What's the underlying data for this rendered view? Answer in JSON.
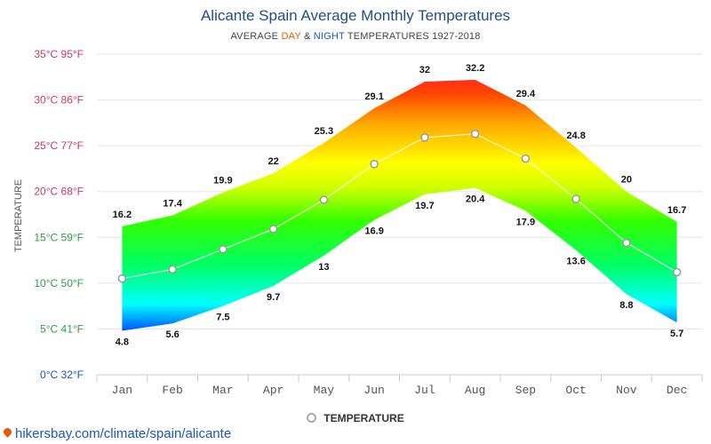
{
  "header": {
    "title": "Alicante Spain Average Monthly Temperatures",
    "subtitle_prefix": "AVERAGE ",
    "subtitle_day": "DAY",
    "subtitle_amp": " & ",
    "subtitle_night": "NIGHT",
    "subtitle_suffix": " TEMPERATURES 1927-2018"
  },
  "legend": {
    "label": "TEMPERATURE"
  },
  "source": {
    "text": "hikersbay.com/climate/spain/alicante"
  },
  "chart_data": {
    "type": "area",
    "title": "Alicante Spain Average Monthly Temperatures",
    "ylabel": "TEMPERATURE",
    "xlabel": "",
    "ylim": [
      0,
      35
    ],
    "categories": [
      "Jan",
      "Feb",
      "Mar",
      "Apr",
      "May",
      "Jun",
      "Jul",
      "Aug",
      "Sep",
      "Oct",
      "Nov",
      "Dec"
    ],
    "y_ticks": [
      {
        "value": 0,
        "label": "0°C 32°F",
        "color": "#1a56c4"
      },
      {
        "value": 5,
        "label": "5°C 41°F",
        "color": "#2f9e44"
      },
      {
        "value": 10,
        "label": "10°C 50°F",
        "color": "#2f9e44"
      },
      {
        "value": 15,
        "label": "15°C 59°F",
        "color": "#2f9e44"
      },
      {
        "value": 20,
        "label": "20°C 68°F",
        "color": "#d6336c"
      },
      {
        "value": 25,
        "label": "25°C 77°F",
        "color": "#d6336c"
      },
      {
        "value": 30,
        "label": "30°C 86°F",
        "color": "#d6336c"
      },
      {
        "value": 35,
        "label": "35°C 95°F",
        "color": "#d6336c"
      }
    ],
    "series": [
      {
        "name": "Day",
        "values": [
          16.2,
          17.4,
          19.9,
          22,
          25.3,
          29.1,
          32,
          32.2,
          29.4,
          24.8,
          20,
          16.7
        ]
      },
      {
        "name": "Night",
        "values": [
          4.8,
          5.6,
          7.5,
          9.7,
          13,
          16.9,
          19.7,
          20.4,
          17.9,
          13.6,
          8.8,
          5.7
        ]
      },
      {
        "name": "TEMPERATURE",
        "values": [
          10.5,
          11.5,
          13.7,
          15.9,
          19.1,
          23,
          25.9,
          26.3,
          23.6,
          19.2,
          14.4,
          11.2
        ]
      }
    ]
  }
}
